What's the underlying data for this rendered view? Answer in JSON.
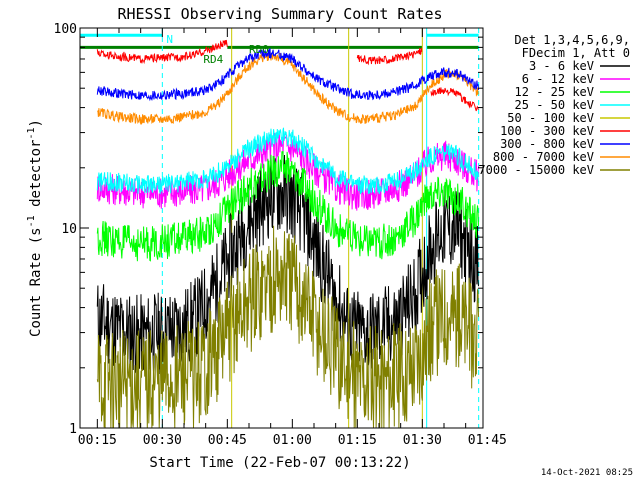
{
  "chart_data": {
    "type": "line",
    "title": "RHESSI Observing Summary Count Rates",
    "xlabel": "Start Time (22-Feb-07 00:13:22)",
    "ylabel_main": "Count Rate (s",
    "ylabel_exp": "-1",
    "ylabel_tail": " detector",
    "ylabel_exp2": "-1",
    "ylabel_close": ")",
    "yscale": "log",
    "ylim": [
      1,
      100
    ],
    "ytick_labels": [
      "1",
      "10",
      "100"
    ],
    "xlim_minutes": [
      11,
      104
    ],
    "xticks": [
      {
        "label": "00:15",
        "minutes": 15
      },
      {
        "label": "00:30",
        "minutes": 30
      },
      {
        "label": "00:45",
        "minutes": 45
      },
      {
        "label": "01:00",
        "minutes": 60
      },
      {
        "label": "01:15",
        "minutes": 75
      },
      {
        "label": "01:30",
        "minutes": 90
      },
      {
        "label": "01:45",
        "minutes": 105
      }
    ],
    "legend_header": [
      "Det 1,3,4,5,6,9,",
      "FDecim 1, Att 0"
    ],
    "legend_placement": "right",
    "series": [
      {
        "name": "3 - 6 keV",
        "color": "#000000",
        "x": [
          15,
          20,
          25,
          30,
          35,
          38,
          40,
          43,
          46,
          50,
          55,
          58,
          60,
          63,
          66,
          70,
          73,
          76,
          80,
          84,
          88,
          90,
          92,
          95,
          98,
          100,
          103
        ],
        "y": [
          3.5,
          3.1,
          2.9,
          3.0,
          3.2,
          3.6,
          4.2,
          5.5,
          7.5,
          11,
          14.5,
          15,
          14,
          11,
          7.5,
          4.5,
          3.2,
          3.0,
          3.1,
          3.4,
          4.5,
          6,
          8,
          10,
          9.8,
          8.2,
          6.3
        ]
      },
      {
        "name": "6 - 12 keV",
        "color": "#ff00ff",
        "x": [
          15,
          20,
          25,
          30,
          35,
          40,
          43,
          46,
          50,
          55,
          58,
          60,
          63,
          66,
          70,
          73,
          76,
          80,
          84,
          88,
          90,
          92,
          95,
          98,
          100,
          103
        ],
        "y": [
          16,
          15.5,
          15,
          15,
          15.2,
          15.8,
          17,
          19,
          22,
          25,
          26,
          25,
          22,
          19,
          16,
          15,
          14.5,
          15,
          16,
          18,
          20,
          22,
          23,
          22,
          20,
          18
        ]
      },
      {
        "name": "12 - 25 keV",
        "color": "#00ff00",
        "x": [
          15,
          20,
          25,
          30,
          35,
          40,
          43,
          46,
          50,
          55,
          58,
          60,
          63,
          66,
          70,
          73,
          76,
          80,
          84,
          88,
          90,
          92,
          95,
          98,
          100,
          103
        ],
        "y": [
          9,
          8.5,
          8.3,
          8.5,
          8.8,
          9.5,
          11,
          13,
          16,
          19,
          20,
          19,
          16,
          13,
          10,
          9,
          8.5,
          8.5,
          9,
          11,
          13,
          14.5,
          15,
          14,
          12.5,
          10.5
        ]
      },
      {
        "name": "25 - 50 keV",
        "color": "#00ffff",
        "x": [
          15,
          20,
          25,
          30,
          35,
          40,
          43,
          46,
          50,
          55,
          58,
          60,
          63,
          66,
          70,
          73,
          76,
          80,
          84,
          88,
          90,
          92,
          95,
          98,
          100,
          103
        ],
        "y": [
          17,
          17,
          16.5,
          16.5,
          17,
          17.5,
          19,
          21,
          25,
          28,
          29,
          28,
          25,
          21,
          18,
          17,
          16.5,
          16.5,
          17,
          19,
          21,
          23,
          24,
          23,
          21,
          19
        ]
      },
      {
        "name": "800 - 7000 keV",
        "color": "#ff8c00",
        "x": [
          15,
          20,
          25,
          30,
          35,
          40,
          43,
          46,
          48,
          50,
          53,
          55,
          57,
          60,
          63,
          66,
          70,
          73,
          76,
          80,
          84,
          88,
          90,
          92,
          95,
          97,
          100,
          103
        ],
        "y": [
          38,
          36,
          35,
          35,
          36,
          38,
          42,
          50,
          58,
          65,
          71,
          73,
          71,
          65,
          55,
          46,
          39,
          36,
          35,
          35.5,
          37,
          40,
          45,
          52,
          58,
          60,
          55,
          47
        ]
      },
      {
        "name": "300 - 800 keV",
        "color": "#0000ff",
        "x": [
          15,
          20,
          25,
          30,
          35,
          40,
          43,
          46,
          48,
          50,
          53,
          55,
          57,
          60,
          63,
          66,
          70,
          73,
          76,
          80,
          84,
          88,
          90,
          92,
          95,
          97,
          100,
          103
        ],
        "y": [
          49,
          47,
          46,
          46,
          47,
          49,
          53,
          60,
          66,
          71,
          74,
          75,
          74,
          70,
          62,
          55,
          50,
          47,
          46,
          46.5,
          48,
          51,
          55,
          58,
          60,
          60,
          56,
          51
        ]
      },
      {
        "name": "7000 - 15000 keV",
        "color": "#808000",
        "x": [
          15,
          20,
          25,
          30,
          35,
          38,
          40,
          43,
          46,
          50,
          55,
          58,
          60,
          63,
          66,
          70,
          73,
          76,
          80,
          84,
          88,
          90,
          92,
          95,
          98,
          100,
          103
        ],
        "y": [
          1.75,
          1.7,
          1.7,
          1.75,
          1.8,
          1.9,
          2.1,
          2.6,
          3.3,
          4.3,
          5.5,
          5.7,
          5.3,
          4.3,
          3.2,
          2.3,
          1.9,
          1.75,
          1.75,
          1.8,
          2.1,
          2.5,
          3.1,
          3.8,
          3.7,
          3.2,
          2.7
        ]
      },
      {
        "name": "100 - 300 keV",
        "color": "#ff0000",
        "x": [
          15,
          20,
          25,
          30,
          35,
          38,
          40,
          43,
          45
        ],
        "y": [
          75,
          72,
          70,
          71,
          72,
          74,
          77,
          81,
          84
        ],
        "x2": [
          75,
          78,
          80,
          83,
          85,
          88,
          90
        ],
        "y2": [
          71,
          69,
          69,
          70,
          71,
          74,
          78
        ],
        "x3": [
          92,
          95,
          98,
          100,
          103
        ],
        "y3": [
          47,
          49,
          47,
          43,
          39
        ]
      },
      {
        "name": "50 - 100 keV",
        "color": "#c8c800",
        "x": [],
        "y": []
      }
    ],
    "legend_order": [
      "3 - 6 keV",
      "6 - 12 keV",
      "12 - 25 keV",
      "25 - 50 keV",
      "50 - 100 keV",
      "100 - 300 keV",
      "300 - 800 keV",
      "800 - 7000 keV",
      "7000 - 15000 keV"
    ],
    "legend_colors": [
      "#000000",
      "#ff00ff",
      "#00ff00",
      "#00ffff",
      "#c8c800",
      "#ff0000",
      "#0000ff",
      "#ff8c00",
      "#808000"
    ],
    "annotations": [
      {
        "label": "N",
        "color": "#00ffff"
      },
      {
        "label": "RD0",
        "color": "#008000"
      },
      {
        "label": "RD4",
        "color": "#008000"
      }
    ],
    "flag_bars": {
      "night_color": "#00ffff",
      "saa_color": "#008000",
      "night_segments_minutes": [
        [
          11,
          30
        ],
        [
          91,
          103
        ]
      ],
      "green_segments_minutes": [
        [
          11,
          42
        ],
        [
          45,
          90
        ],
        [
          91,
          103
        ]
      ],
      "green_level": 80,
      "night_level": 92,
      "orbit_markers_minutes": [
        [
          30,
          "#00ffff",
          true
        ],
        [
          46,
          "#c8c800",
          false
        ],
        [
          73,
          "#c8c800",
          false
        ],
        [
          90,
          "#c8c800",
          false
        ],
        [
          91,
          "#00ffff",
          false
        ],
        [
          103,
          "#00ffff",
          true
        ]
      ]
    }
  },
  "footer": {
    "timestamp": "14-Oct-2021 08:25"
  }
}
